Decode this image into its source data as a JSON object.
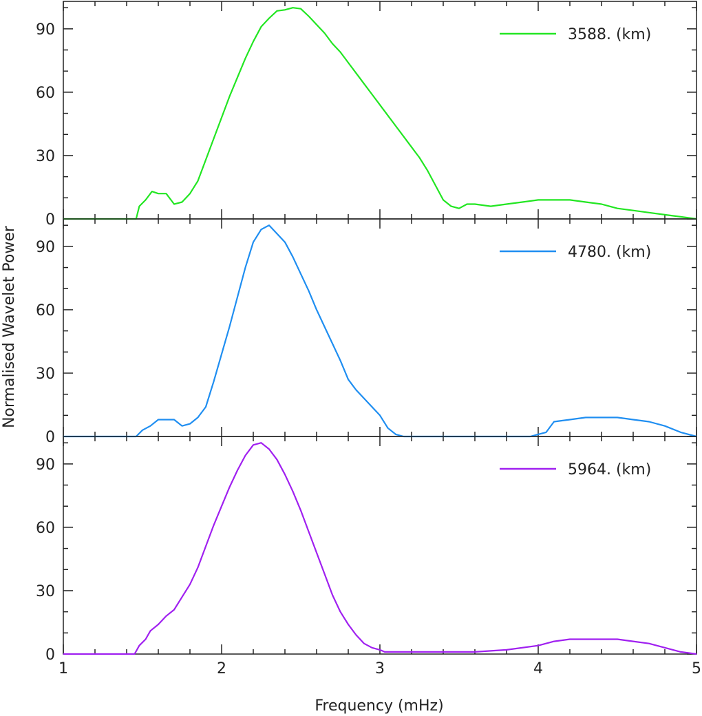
{
  "chart_data": {
    "type": "line",
    "xlabel": "Frequency (mHz)",
    "ylabel": "Normalised Wavelet Power",
    "xlim": [
      1,
      5
    ],
    "ylim": [
      0,
      103
    ],
    "xticks": [
      1,
      2,
      3,
      4,
      5
    ],
    "yticks": [
      0,
      30,
      60,
      90
    ],
    "legend_position": "top-right",
    "panels": [
      {
        "name": "3588. (km)",
        "color": "#22e622",
        "x": [
          1.0,
          1.46,
          1.48,
          1.52,
          1.56,
          1.6,
          1.65,
          1.7,
          1.75,
          1.8,
          1.85,
          1.9,
          1.95,
          2.0,
          2.05,
          2.1,
          2.15,
          2.2,
          2.25,
          2.3,
          2.35,
          2.4,
          2.45,
          2.5,
          2.55,
          2.6,
          2.65,
          2.7,
          2.75,
          2.8,
          2.85,
          2.9,
          2.95,
          3.0,
          3.05,
          3.1,
          3.15,
          3.2,
          3.25,
          3.3,
          3.35,
          3.4,
          3.45,
          3.5,
          3.55,
          3.6,
          3.7,
          3.8,
          3.9,
          4.0,
          4.1,
          4.2,
          4.3,
          4.4,
          4.5,
          4.6,
          4.7,
          4.8,
          4.9,
          5.0
        ],
        "y": [
          0,
          0,
          6,
          9,
          13,
          12,
          12,
          7,
          8,
          12,
          18,
          28,
          38,
          48,
          58,
          67,
          76,
          84,
          91,
          95,
          98.5,
          99,
          100,
          99.5,
          96,
          92,
          88,
          83,
          79,
          74,
          69,
          64,
          59,
          54,
          49,
          44,
          39,
          34,
          29,
          23,
          16,
          9,
          6,
          5,
          7,
          7,
          6,
          7,
          8,
          9,
          9,
          9,
          8,
          7,
          5,
          4,
          3,
          2,
          1,
          0
        ]
      },
      {
        "name": "4780. (km)",
        "color": "#1f8ef1",
        "x": [
          1.0,
          1.46,
          1.5,
          1.55,
          1.6,
          1.65,
          1.7,
          1.75,
          1.8,
          1.85,
          1.9,
          1.95,
          2.0,
          2.05,
          2.1,
          2.15,
          2.2,
          2.25,
          2.3,
          2.35,
          2.4,
          2.45,
          2.5,
          2.55,
          2.6,
          2.65,
          2.7,
          2.75,
          2.8,
          2.85,
          2.9,
          2.95,
          3.0,
          3.05,
          3.1,
          3.15,
          3.2,
          3.25,
          3.3,
          3.4,
          3.6,
          3.8,
          3.95,
          4.0,
          4.05,
          4.1,
          4.2,
          4.3,
          4.4,
          4.5,
          4.6,
          4.7,
          4.8,
          4.9,
          5.0
        ],
        "y": [
          0,
          0,
          3,
          5,
          8,
          8,
          8,
          5,
          6,
          9,
          14,
          26,
          39,
          52,
          66,
          80,
          92,
          98,
          100,
          96,
          92,
          85,
          77,
          69,
          60,
          52,
          44,
          36,
          27,
          22,
          18,
          14,
          10,
          4,
          1,
          0,
          0,
          0,
          0,
          0,
          0,
          0,
          0,
          1,
          2,
          7,
          8,
          9,
          9,
          9,
          8,
          7,
          5,
          2,
          0
        ]
      },
      {
        "name": "5964. (km)",
        "color": "#a020f0",
        "x": [
          1.0,
          1.45,
          1.48,
          1.52,
          1.55,
          1.6,
          1.65,
          1.7,
          1.75,
          1.8,
          1.85,
          1.9,
          1.95,
          2.0,
          2.05,
          2.1,
          2.15,
          2.2,
          2.25,
          2.3,
          2.35,
          2.4,
          2.45,
          2.5,
          2.55,
          2.6,
          2.65,
          2.7,
          2.75,
          2.8,
          2.85,
          2.9,
          2.95,
          3.0,
          3.03,
          3.05,
          3.1,
          3.2,
          3.4,
          3.6,
          3.8,
          4.0,
          4.1,
          4.2,
          4.3,
          4.4,
          4.5,
          4.6,
          4.7,
          4.8,
          4.9,
          5.0
        ],
        "y": [
          0,
          0,
          4,
          7,
          11,
          14,
          18,
          21,
          27,
          33,
          41,
          51,
          61,
          70,
          79,
          87,
          94,
          99,
          100,
          97,
          92,
          85,
          77,
          68,
          58,
          48,
          38,
          28,
          20,
          14,
          9,
          5,
          3,
          2,
          1,
          1,
          1,
          1,
          1,
          1,
          2,
          4,
          6,
          7,
          7,
          7,
          7,
          6,
          5,
          3,
          1,
          0
        ]
      }
    ]
  }
}
